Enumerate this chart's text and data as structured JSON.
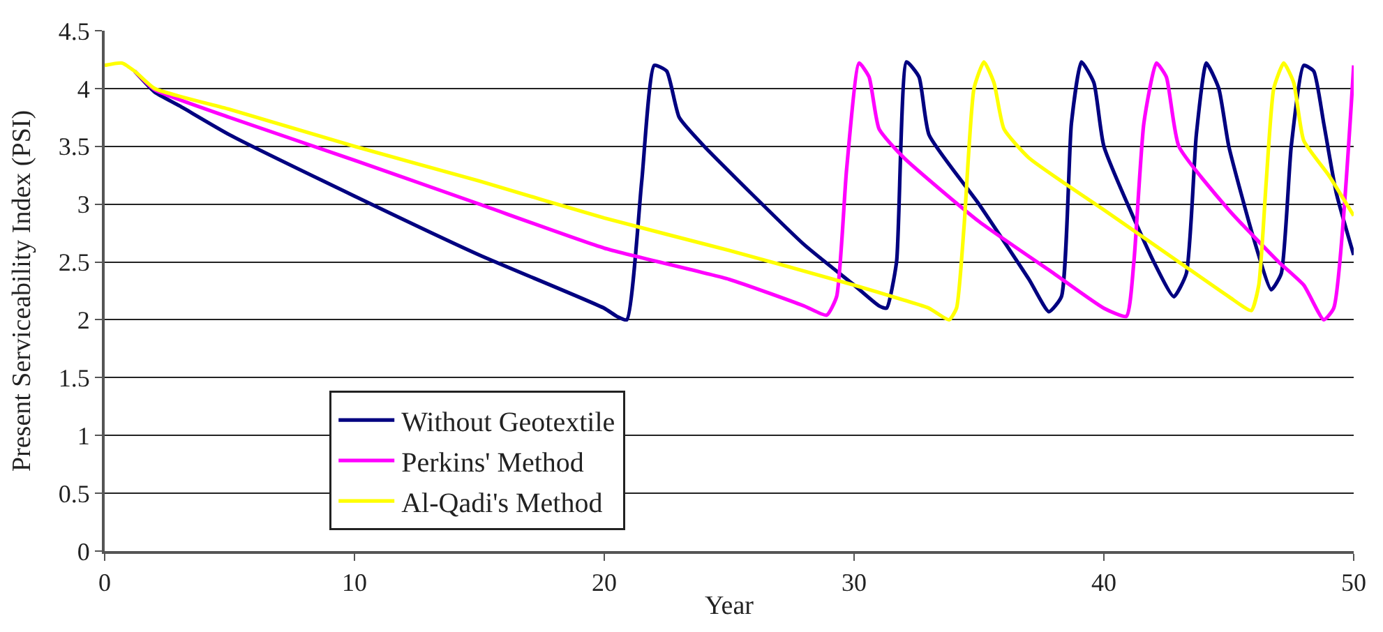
{
  "chart_data": {
    "type": "line",
    "xlabel": "Year",
    "ylabel": "Present Serviceability Index (PSI)",
    "xlim": [
      0,
      50
    ],
    "xticks": [
      0,
      10,
      20,
      30,
      40,
      50
    ],
    "ylim": [
      0,
      4.5
    ],
    "yticks": [
      0,
      0.5,
      1,
      1.5,
      2,
      2.5,
      3,
      3.5,
      4,
      4.5
    ],
    "grid": "y",
    "legend": "bottom",
    "marker": "none",
    "line_style": "solid",
    "series": [
      {
        "name": "Without Geotextile",
        "color": "#000080",
        "x": [
          1.2,
          2,
          3,
          5,
          10,
          15,
          20,
          20.5,
          20.9,
          21.5,
          22,
          22.5,
          23,
          24,
          28,
          30,
          31,
          31.3,
          31.7,
          32.1,
          32.6,
          33,
          35,
          37,
          37.8,
          38.3,
          38.7,
          39.1,
          39.6,
          40,
          42,
          42.8,
          43.3,
          43.7,
          44.1,
          44.6,
          45,
          46,
          46.7,
          47.1,
          47.5,
          48,
          48.4,
          48.8,
          49.3,
          50
        ],
        "values": [
          4.15,
          3.97,
          3.85,
          3.6,
          3.07,
          2.56,
          2.1,
          2.03,
          2.0,
          3.2,
          4.2,
          4.15,
          3.75,
          3.5,
          2.65,
          2.3,
          2.12,
          2.1,
          2.5,
          4.23,
          4.1,
          3.6,
          3.0,
          2.35,
          2.07,
          2.2,
          3.7,
          4.23,
          4.05,
          3.5,
          2.5,
          2.2,
          2.4,
          3.6,
          4.22,
          4.0,
          3.5,
          2.7,
          2.26,
          2.4,
          3.5,
          4.2,
          4.15,
          3.7,
          3.1,
          2.56
        ]
      },
      {
        "name": "Perkins' Method",
        "color": "#ff00ff",
        "x": [
          1.2,
          2,
          5,
          10,
          15,
          20,
          25,
          28,
          28.9,
          29.3,
          29.7,
          30.2,
          30.6,
          31,
          32,
          35,
          38,
          40,
          40.9,
          41.2,
          41.6,
          42.1,
          42.5,
          43,
          45,
          47,
          48,
          48.8,
          49.2,
          50
        ],
        "values": [
          4.15,
          3.99,
          3.75,
          3.38,
          3.0,
          2.62,
          2.35,
          2.12,
          2.04,
          2.2,
          3.3,
          4.22,
          4.1,
          3.65,
          3.4,
          2.85,
          2.4,
          2.1,
          2.03,
          2.5,
          3.7,
          4.22,
          4.1,
          3.5,
          2.95,
          2.5,
          2.3,
          2.0,
          2.1,
          4.2
        ]
      },
      {
        "name": "Al-Qadi's Method",
        "color": "#ffff00",
        "x": [
          0,
          0.7,
          1.2,
          2,
          5,
          10,
          15,
          20,
          25,
          30,
          32,
          33,
          33.8,
          34.1,
          34.4,
          34.8,
          35.2,
          35.6,
          36,
          37,
          40,
          43,
          45,
          45.9,
          46.2,
          46.5,
          46.8,
          47.2,
          47.6,
          48,
          49,
          50
        ],
        "values": [
          4.2,
          4.22,
          4.15,
          4.0,
          3.82,
          3.5,
          3.2,
          2.88,
          2.6,
          2.3,
          2.17,
          2.1,
          2.0,
          2.1,
          2.8,
          4.0,
          4.23,
          4.05,
          3.65,
          3.4,
          2.95,
          2.5,
          2.2,
          2.08,
          2.3,
          3.2,
          4.0,
          4.22,
          4.05,
          3.55,
          3.25,
          2.9
        ]
      }
    ]
  }
}
